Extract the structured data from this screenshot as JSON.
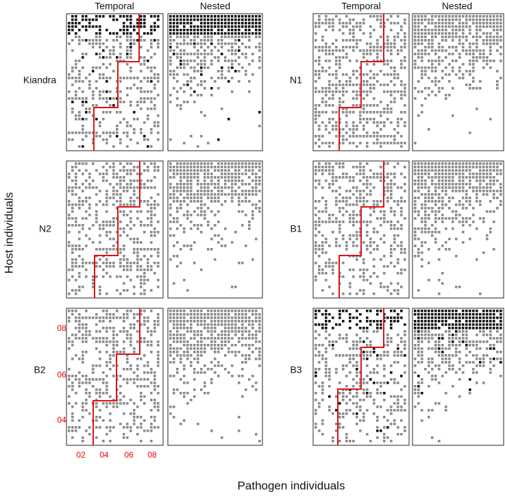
{
  "column_headers": [
    "Temporal",
    "Nested",
    "Temporal",
    "Nested"
  ],
  "panels": [
    {
      "label": "Kiandra"
    },
    {
      "label": "N2"
    },
    {
      "label": "B2"
    },
    {
      "label": "N1"
    },
    {
      "label": "B1"
    },
    {
      "label": "B3"
    }
  ],
  "y_axis_label": "Host individuals",
  "x_axis_label": "Pathogen individuals",
  "b2_axis": {
    "yticks": [
      "08",
      "06",
      "04"
    ],
    "xticks": [
      "02",
      "04",
      "06",
      "08"
    ]
  }
}
